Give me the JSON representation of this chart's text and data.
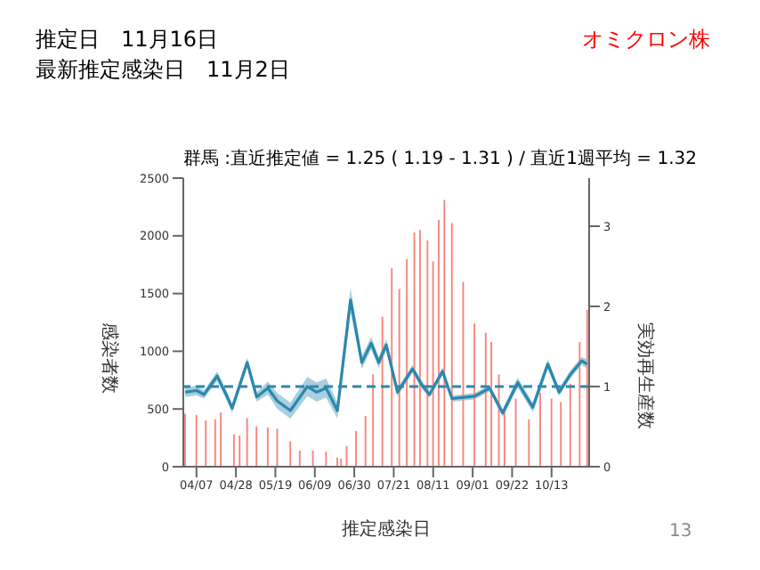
{
  "chart_data": {
    "type": "bar",
    "title": "群馬 :直近推定値 = 1.25 ( 1.19 - 1.31 ) / 直近1週平均 = 1.32",
    "xlabel": "推定感染日",
    "ylabel": "感染者数",
    "y2label": "実効再生産数",
    "annotations": [
      "推定日　11月16日",
      "最新推定感染日　11月2日",
      "オミクロン株",
      "13"
    ],
    "xlim": [
      "--03-31",
      "--11-02"
    ],
    "xticks": [
      {
        "value": "--04-07",
        "label": "04/07"
      },
      {
        "value": "--04-28",
        "label": "04/28"
      },
      {
        "value": "--05-19",
        "label": "05/19"
      },
      {
        "value": "--06-09",
        "label": "06/09"
      },
      {
        "value": "--06-30",
        "label": "06/30"
      },
      {
        "value": "--07-21",
        "label": "07/21"
      },
      {
        "value": "--08-11",
        "label": "08/11"
      },
      {
        "value": "--09-01",
        "label": "09/01"
      },
      {
        "value": "--09-22",
        "label": "09/22"
      },
      {
        "value": "--10-13",
        "label": "10/13"
      }
    ],
    "ylim": [
      0,
      2500
    ],
    "yticks": [
      0,
      500,
      1000,
      1500,
      2000,
      2500
    ],
    "y2lim": [
      0,
      3.6
    ],
    "y2ticks": [
      0,
      1,
      2,
      3
    ],
    "series": [
      {
        "color": "#f8857c",
        "x": [
          "--04-01",
          "--04-07",
          "--04-12",
          "--04-17",
          "--04-20",
          "--04-27",
          "--04-30",
          "--05-04",
          "--05-09",
          "--05-15",
          "--05-20",
          "--05-27",
          "--06-01",
          "--06-08",
          "--06-15",
          "--06-21",
          "--06-23",
          "--06-26",
          "--07-01",
          "--07-06",
          "--07-10",
          "--07-15",
          "--07-20",
          "--07-24",
          "--07-28",
          "--08-01",
          "--08-04",
          "--08-08",
          "--08-11",
          "--08-14",
          "--08-17",
          "--08-21",
          "--08-27",
          "--09-02",
          "--09-08",
          "--09-11",
          "--09-15",
          "--09-18",
          "--09-24",
          "--10-01",
          "--10-07",
          "--10-13",
          "--10-18",
          "--10-23",
          "--10-28",
          "--11-01"
        ],
        "values": [
          460,
          450,
          400,
          410,
          470,
          280,
          270,
          420,
          350,
          340,
          330,
          220,
          140,
          140,
          130,
          80,
          70,
          180,
          310,
          440,
          800,
          1300,
          1720,
          1540,
          1800,
          2030,
          2050,
          1960,
          1780,
          2140,
          2310,
          2110,
          1600,
          1240,
          1160,
          1080,
          800,
          520,
          590,
          410,
          640,
          590,
          560,
          720,
          1080,
          1360
        ]
      },
      {
        "type": "line",
        "axis": "y2",
        "color": "#2a88ad",
        "x": [
          "--04-01",
          "--04-07",
          "--04-11",
          "--04-18",
          "--04-23",
          "--04-26",
          "--05-04",
          "--05-09",
          "--05-15",
          "--05-20",
          "--05-27",
          "--06-05",
          "--06-10",
          "--06-15",
          "--06-21",
          "--06-28",
          "--07-04",
          "--07-09",
          "--07-13",
          "--07-17",
          "--07-23",
          "--07-31",
          "--08-05",
          "--08-09",
          "--08-16",
          "--08-21",
          "--09-02",
          "--09-10",
          "--09-17",
          "--09-25",
          "--10-03",
          "--10-11",
          "--10-17",
          "--10-23",
          "--10-29",
          "--11-01"
        ],
        "values": [
          0.93,
          0.95,
          0.9,
          1.13,
          0.89,
          0.73,
          1.3,
          0.87,
          0.98,
          0.82,
          0.7,
          1.0,
          0.93,
          0.98,
          0.7,
          2.08,
          1.3,
          1.54,
          1.3,
          1.52,
          0.93,
          1.22,
          1.02,
          0.9,
          1.19,
          0.85,
          0.88,
          0.98,
          0.67,
          1.05,
          0.74,
          1.28,
          0.93,
          1.15,
          1.32,
          1.28
        ],
        "lower": [
          0.87,
          0.89,
          0.85,
          1.07,
          0.83,
          0.67,
          1.24,
          0.81,
          0.9,
          0.72,
          0.6,
          0.88,
          0.81,
          0.86,
          0.6,
          1.93,
          1.22,
          1.46,
          1.23,
          1.45,
          0.88,
          1.17,
          0.97,
          0.86,
          1.14,
          0.81,
          0.84,
          0.94,
          0.62,
          0.99,
          0.68,
          1.22,
          0.88,
          1.1,
          1.27,
          1.22
        ],
        "upper": [
          0.99,
          1.01,
          0.95,
          1.19,
          0.95,
          0.79,
          1.36,
          0.93,
          1.06,
          0.92,
          0.8,
          1.12,
          1.05,
          1.1,
          0.8,
          2.23,
          1.38,
          1.62,
          1.37,
          1.59,
          0.98,
          1.27,
          1.07,
          0.94,
          1.24,
          0.89,
          0.92,
          1.02,
          0.72,
          1.11,
          0.8,
          1.34,
          0.98,
          1.2,
          1.37,
          1.34
        ]
      }
    ],
    "ref_lines": [
      {
        "axis": "y2",
        "value": 1,
        "color": "#2a88ad",
        "line_style": "dashed"
      }
    ],
    "grid": false,
    "legend": false
  }
}
